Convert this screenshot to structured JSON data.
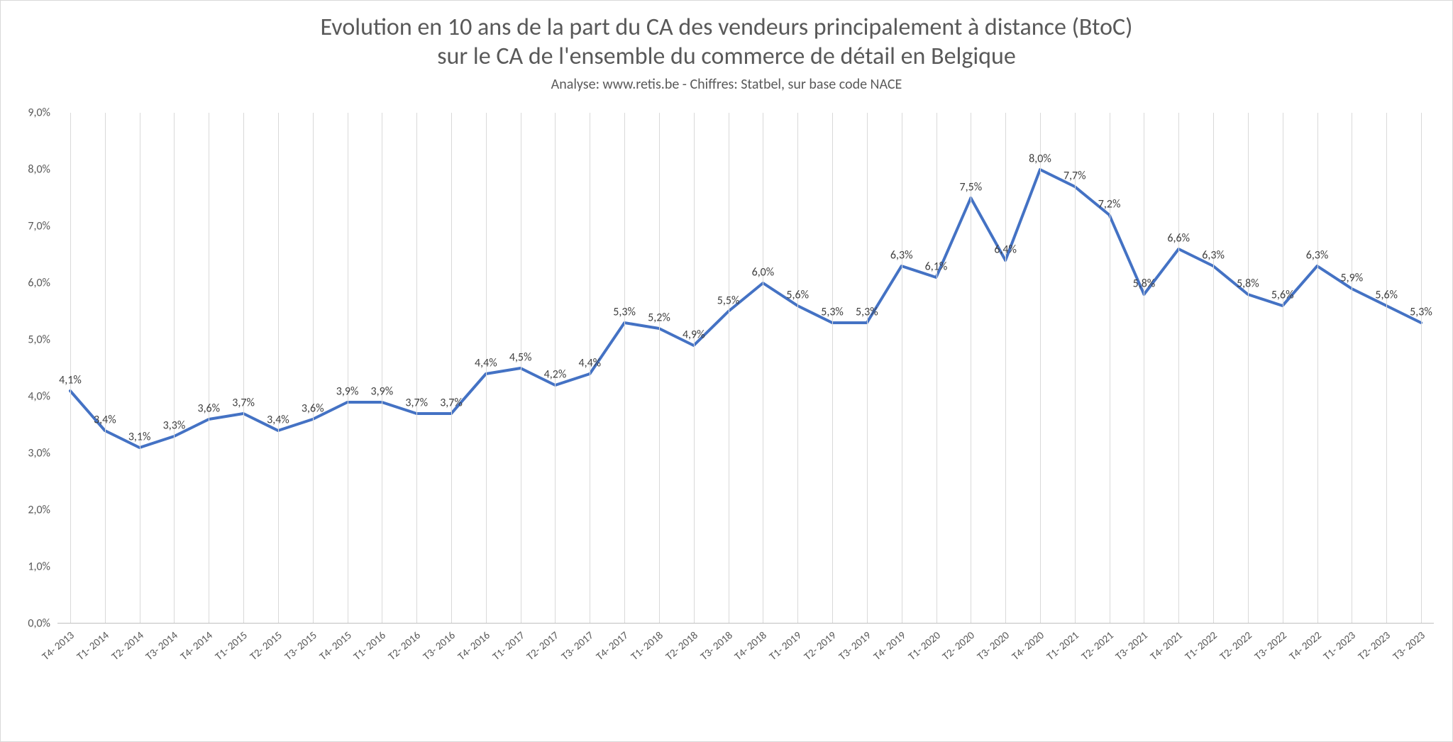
{
  "chart": {
    "type": "line",
    "title_line1": "Evolution en 10 ans de la part du CA des vendeurs principalement à distance (BtoC)",
    "title_line2": "sur le CA de l'ensemble du commerce de détail en Belgique",
    "subtitle": "Analyse: www.retis.be -  Chiffres: Statbel, sur base code NACE",
    "title_fontsize": 34,
    "subtitle_fontsize": 20,
    "title_color": "#595959",
    "background_color": "#ffffff",
    "grid_color": "#d9d9d9",
    "axis_color": "#bfbfbf",
    "line_color": "#4472c4",
    "line_width": 4,
    "ylabel_fontsize": 16,
    "xlabel_fontsize": 15,
    "data_label_fontsize": 16,
    "data_label_color": "#404040",
    "ylim": [
      0,
      9
    ],
    "ytick_step": 1,
    "ytick_format": "decimal_percent",
    "x_rotation_deg": -40,
    "categories": [
      "T4- 2013",
      "T1- 2014",
      "T2- 2014",
      "T3- 2014",
      "T4- 2014",
      "T1- 2015",
      "T2- 2015",
      "T3- 2015",
      "T4- 2015",
      "T1- 2016",
      "T2- 2016",
      "T3- 2016",
      "T4- 2016",
      "T1- 2017",
      "T2- 2017",
      "T3- 2017",
      "T4- 2017",
      "T1- 2018",
      "T2- 2018",
      "T3- 2018",
      "T4- 2018",
      "T1- 2019",
      "T2- 2019",
      "T3- 2019",
      "T4- 2019",
      "T1- 2020",
      "T2- 2020",
      "T3- 2020",
      "T4- 2020",
      "T1- 2021",
      "T2- 2021",
      "T3- 2021",
      "T4- 2021",
      "T1- 2022",
      "T2- 2022",
      "T3- 2022",
      "T4- 2022",
      "T1- 2023",
      "T2- 2023",
      "T3- 2023"
    ],
    "values": [
      4.1,
      3.4,
      3.1,
      3.3,
      3.6,
      3.7,
      3.4,
      3.6,
      3.9,
      3.9,
      3.7,
      3.7,
      4.4,
      4.5,
      4.2,
      4.4,
      5.3,
      5.2,
      4.9,
      5.5,
      6.0,
      5.6,
      5.3,
      5.3,
      6.3,
      6.1,
      7.5,
      6.4,
      8.0,
      7.7,
      7.2,
      5.8,
      6.6,
      6.3,
      5.8,
      5.6,
      6.3,
      5.9,
      5.6,
      5.3
    ],
    "value_labels": [
      "4,1%",
      "3,4%",
      "3,1%",
      "3,3%",
      "3,6%",
      "3,7%",
      "3,4%",
      "3,6%",
      "3,9%",
      "3,9%",
      "3,7%",
      "3,7%",
      "4,4%",
      "4,5%",
      "4,2%",
      "4,4%",
      "5,3%",
      "5,2%",
      "4,9%",
      "5,5%",
      "6,0%",
      "5,6%",
      "5,3%",
      "5,3%",
      "6,3%",
      "6,1%",
      "7,5%",
      "6,4%",
      "8,0%",
      "7,7%",
      "7,2%",
      "5,8%",
      "6,6%",
      "6,3%",
      "5,8%",
      "5,6%",
      "6,3%",
      "5,9%",
      "5,6%",
      "5,3%"
    ],
    "ytick_labels": [
      "0,0%",
      "1,0%",
      "2,0%",
      "3,0%",
      "4,0%",
      "5,0%",
      "6,0%",
      "7,0%",
      "8,0%",
      "9,0%"
    ]
  }
}
